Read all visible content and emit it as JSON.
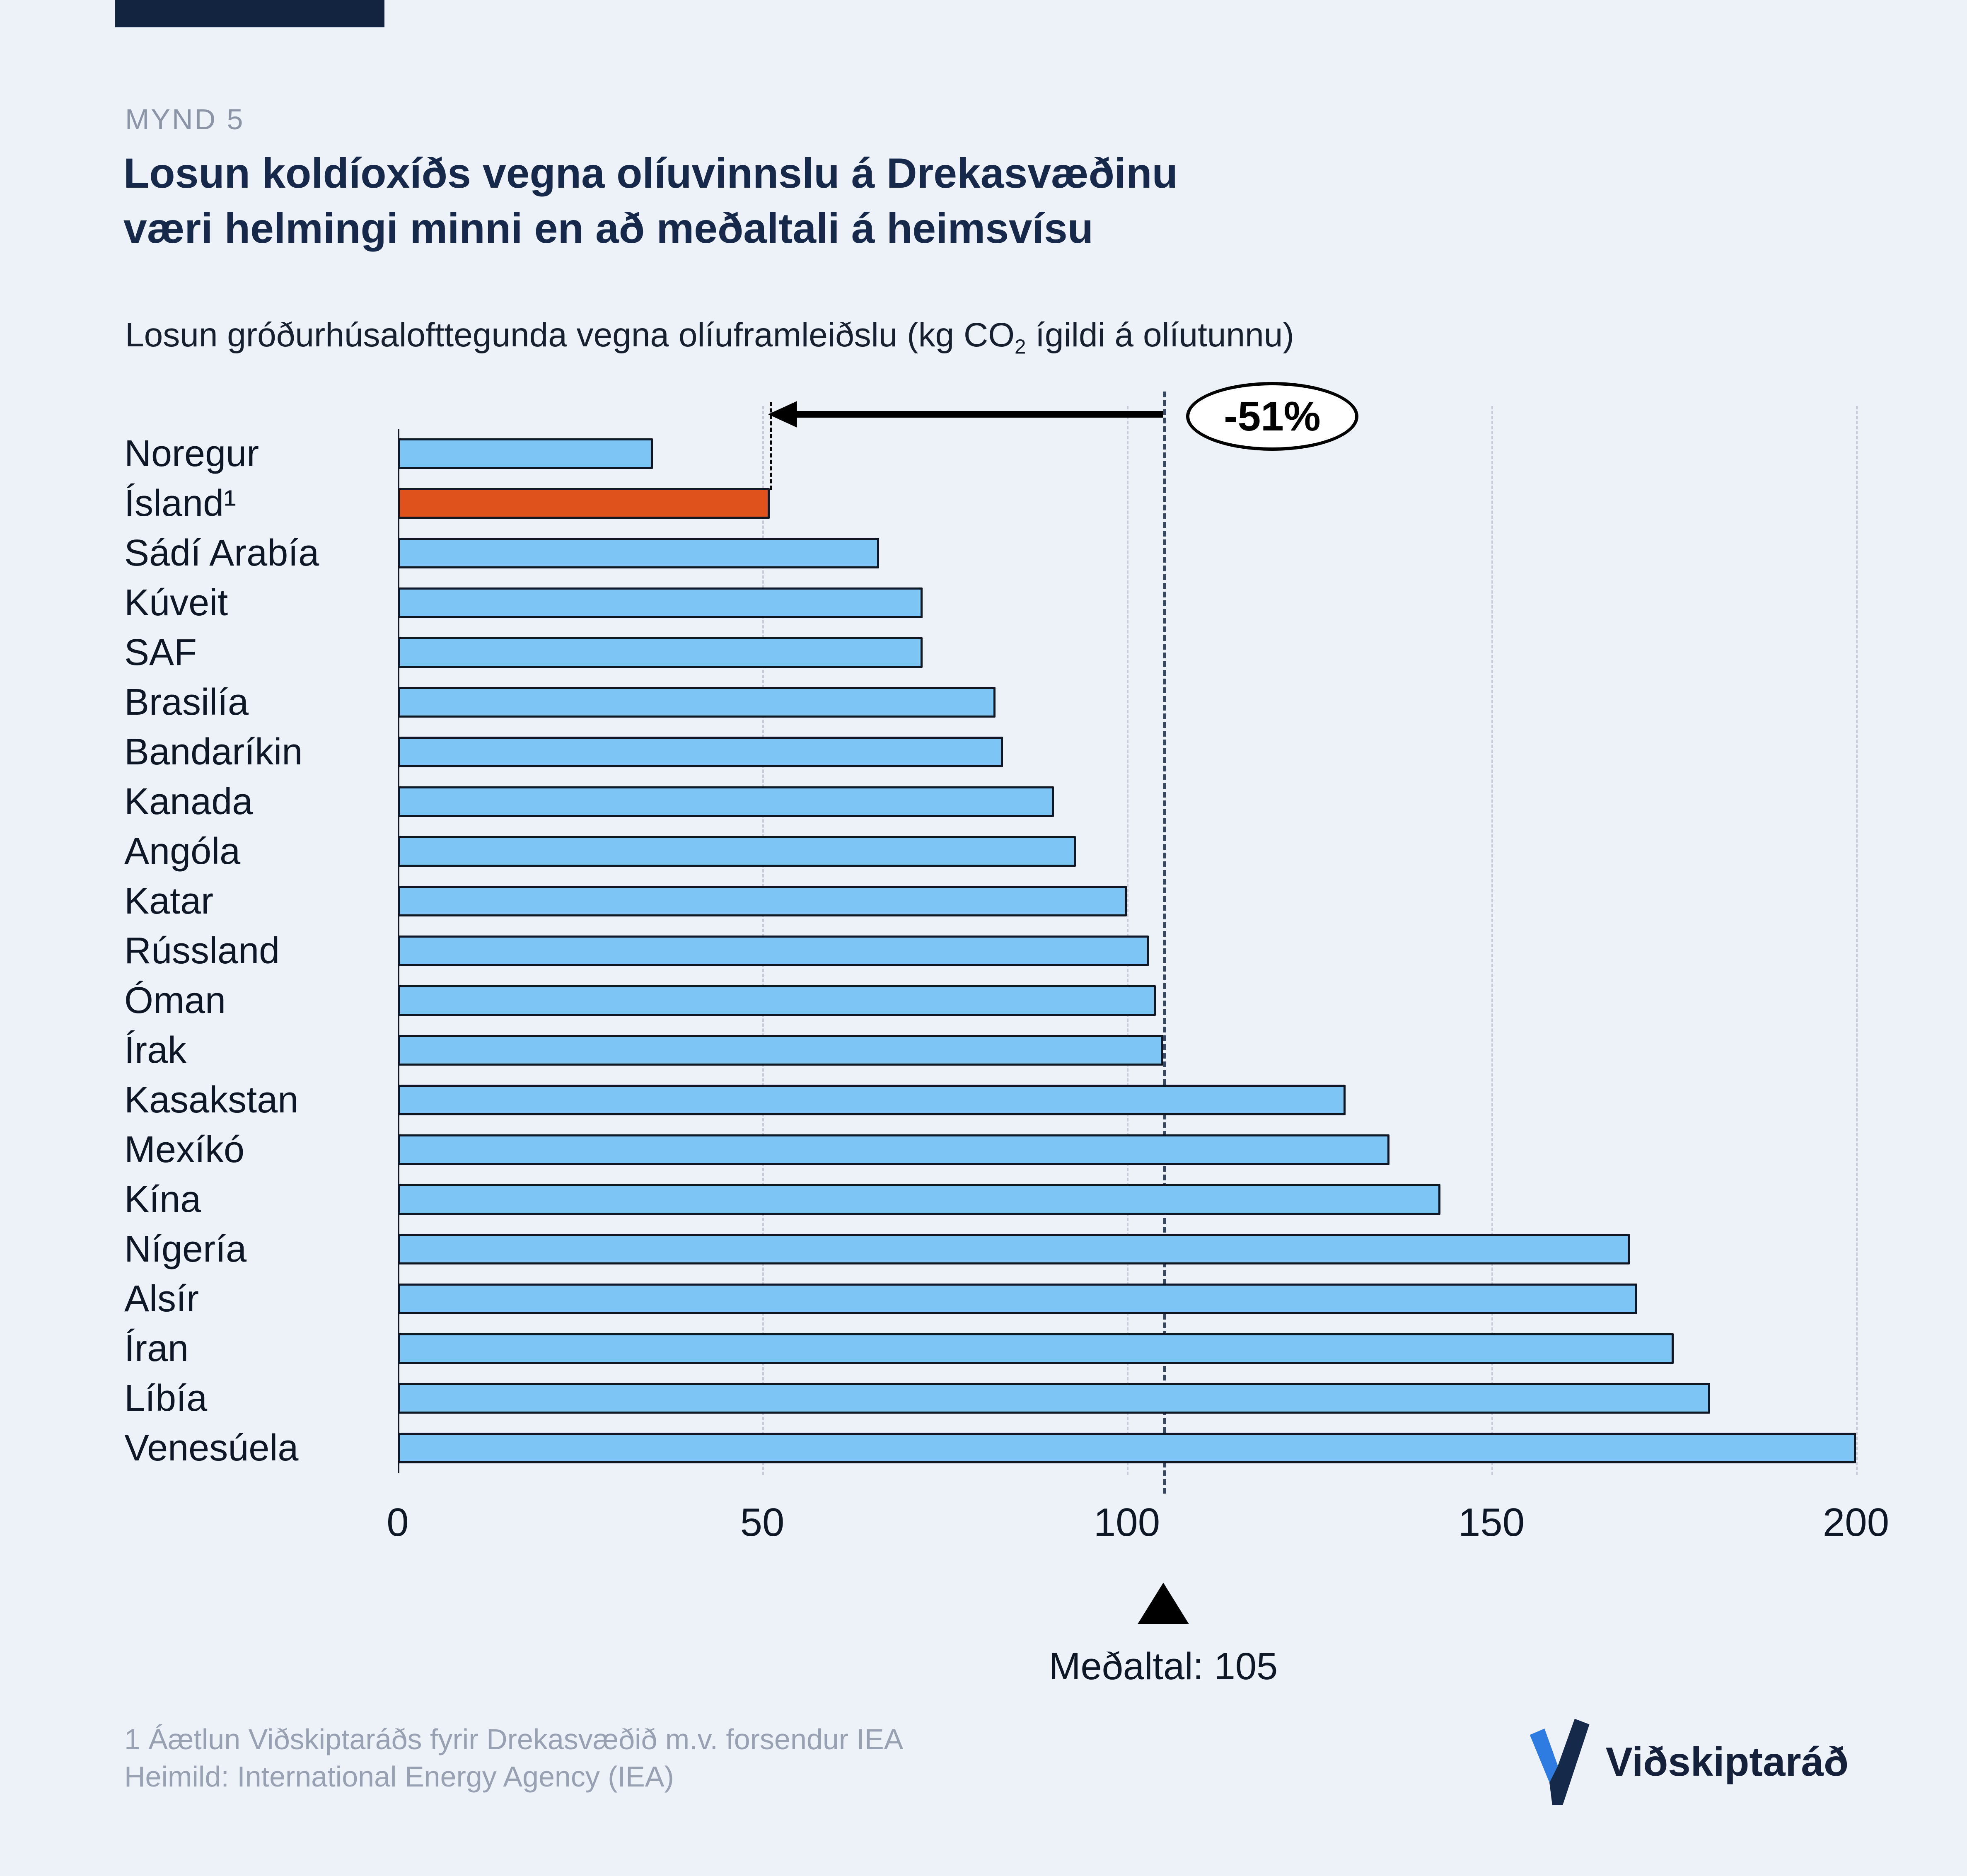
{
  "header": {
    "kicker": "MYND 5",
    "title_line1": "Losun koldíoxíðs vegna olíuvinnslu á Drekasvæðinu",
    "title_line2": "væri helmingi minni en að meðaltali á heimsvísu",
    "subtitle_prefix": "Losun gróðurhúsalofttegunda vegna olíuframleiðslu (kg CO",
    "subtitle_sub": "2",
    "subtitle_suffix": " ígildi á olíutunnu)"
  },
  "chart_data": {
    "type": "bar",
    "orientation": "horizontal",
    "categories": [
      "Noregur",
      "Ísland¹",
      "Sádí Arabía",
      "Kúveit",
      "SAF",
      "Brasilía",
      "Bandaríkin",
      "Kanada",
      "Angóla",
      "Katar",
      "Rússland",
      "Óman",
      "Írak",
      "Kasakstan",
      "Mexíkó",
      "Kína",
      "Nígería",
      "Alsír",
      "Íran",
      "Líbía",
      "Venesúela"
    ],
    "values": [
      35,
      51,
      66,
      72,
      72,
      82,
      83,
      90,
      93,
      100,
      103,
      104,
      105,
      130,
      136,
      143,
      169,
      170,
      175,
      180,
      200
    ],
    "highlight_index": 1,
    "highlight_color": "#e0521c",
    "bar_color": "#7dc5f4",
    "xlim": [
      0,
      200
    ],
    "x_ticks": [
      0,
      50,
      100,
      150,
      200
    ],
    "grid": "vertical-dashed",
    "average": {
      "value": 105,
      "label": "Meðaltal: 105"
    },
    "annotation": {
      "label": "-51%",
      "from": 105,
      "to": 51
    }
  },
  "footer": {
    "footnote1": "1 Áætlun Viðskiptaráðs fyrir Drekasvæðið m.v. forsendur IEA",
    "footnote2": "Heimild: International Energy Agency (IEA)",
    "logo_text": "Viðskiptaráð"
  },
  "colors": {
    "background": "#edf1f8",
    "title_navy": "#17294b",
    "brand_bar": "#12243f",
    "average_line": "#384863",
    "logo_blue": "#2e7ce2"
  }
}
